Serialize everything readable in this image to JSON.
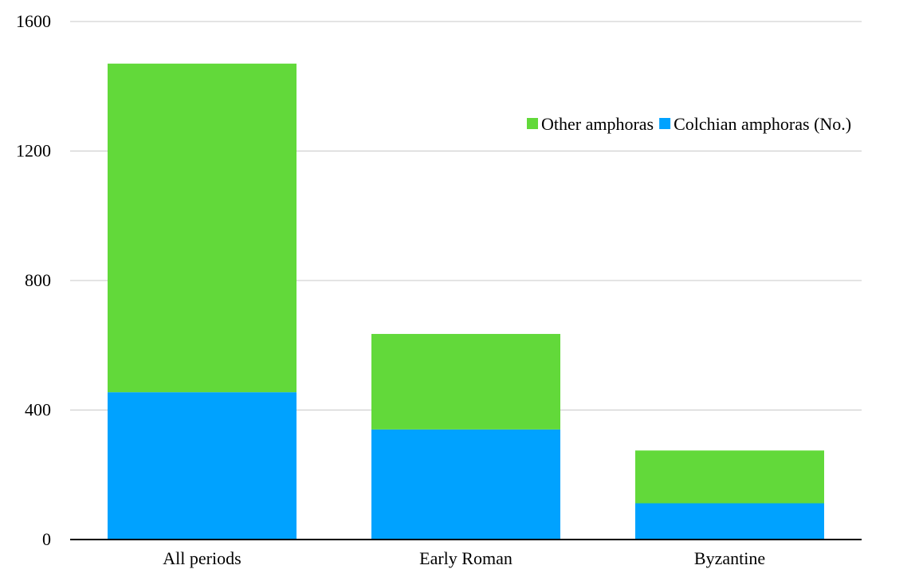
{
  "chart_data": {
    "type": "bar",
    "stacked": true,
    "categories": [
      "All periods",
      "Early Roman",
      "Byzantine"
    ],
    "series": [
      {
        "name": "Colchian amphoras (No.)",
        "color": "#00a2ff",
        "values": [
          455,
          340,
          112
        ]
      },
      {
        "name": "Other amphoras",
        "color": "#62d93a",
        "values": [
          1015,
          295,
          163
        ]
      }
    ],
    "legend": [
      {
        "label": "Other amphoras",
        "color": "#62d93a"
      },
      {
        "label": "Colchian amphoras (No.)",
        "color": "#00a2ff"
      }
    ],
    "legend_position": "right",
    "yticks": [
      0,
      400,
      800,
      1200,
      1600
    ],
    "ylim": [
      0,
      1600
    ],
    "grid": true,
    "title": "",
    "xlabel": "",
    "ylabel": ""
  }
}
